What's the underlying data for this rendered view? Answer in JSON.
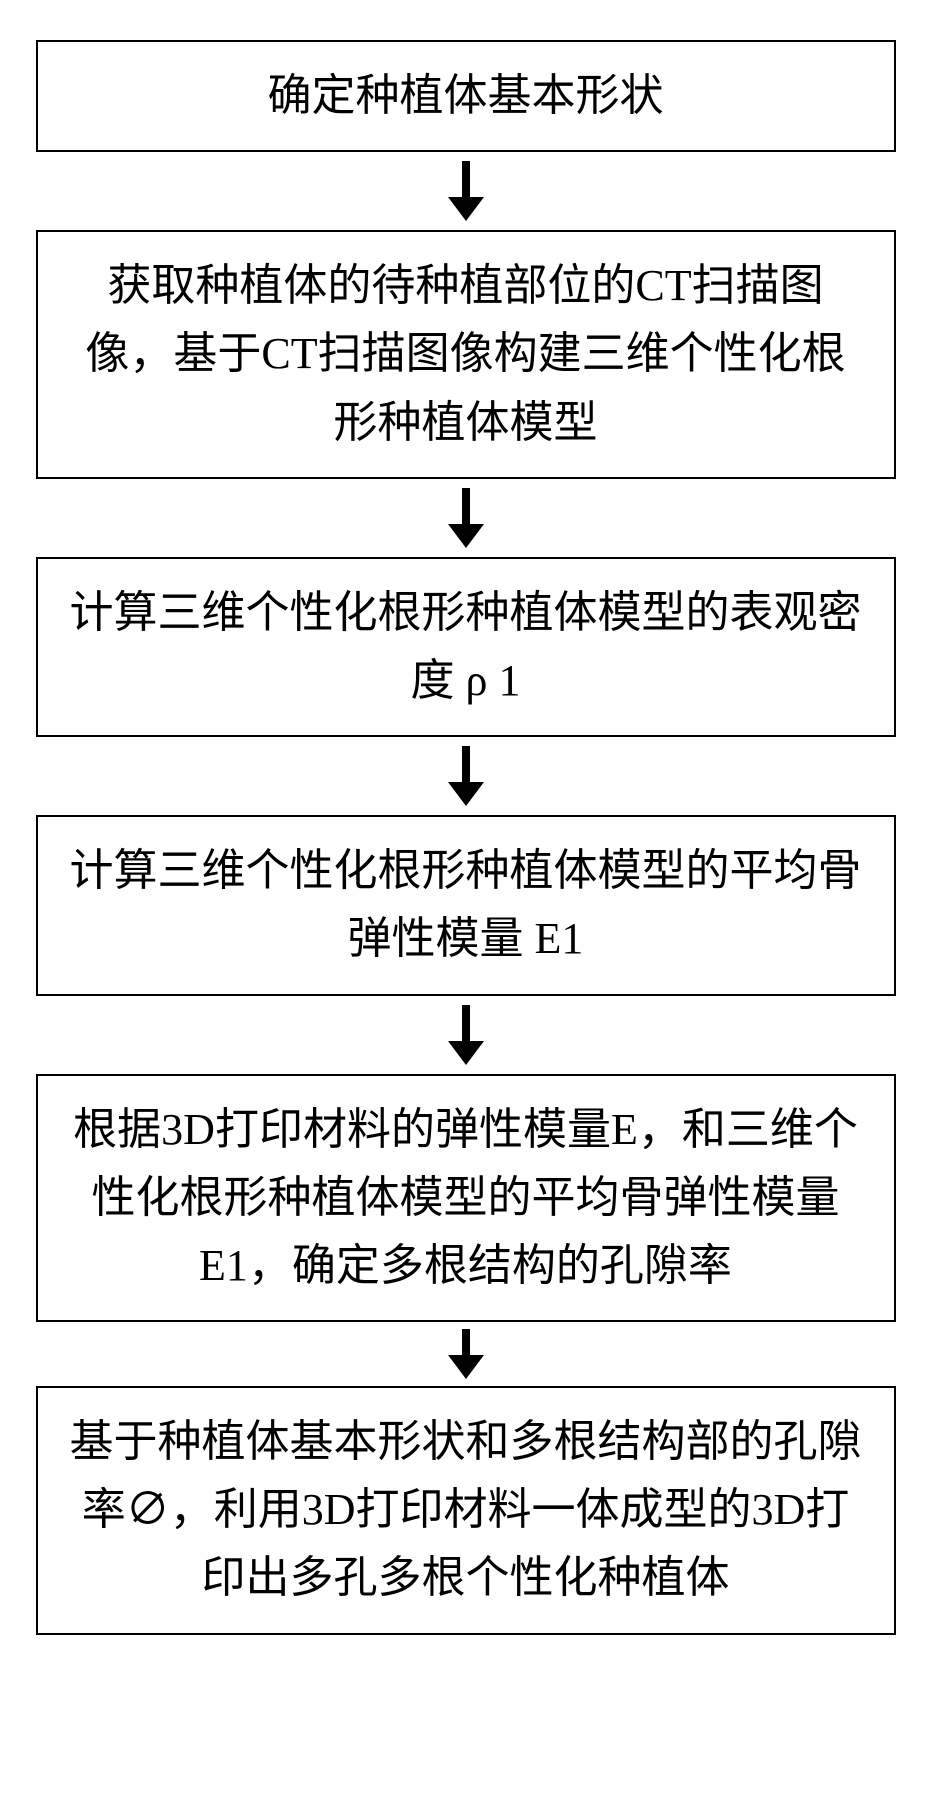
{
  "flow": {
    "type": "flowchart",
    "direction": "vertical",
    "node_border_color": "#000000",
    "node_border_width": 2,
    "node_background": "#ffffff",
    "text_color": "#000000",
    "font_size_pt": 32,
    "arrow_color": "#000000",
    "arrow_shaft_width": 8,
    "arrow_head_width": 36,
    "arrow_head_height": 24,
    "background_color": "#ffffff",
    "nodes": [
      {
        "id": "n1",
        "text": "确定种植体基本形状"
      },
      {
        "id": "n2",
        "text": "获取种植体的待种植部位的CT扫描图像，基于CT扫描图像构建三维个性化根形种植体模型"
      },
      {
        "id": "n3",
        "text": "计算三维个性化根形种植体模型的表观密度 ρ 1"
      },
      {
        "id": "n4",
        "text": "计算三维个性化根形种植体模型的平均骨弹性模量 E1"
      },
      {
        "id": "n5",
        "text": "根据3D打印材料的弹性模量E，和三维个性化根形种植体模型的平均骨弹性模量 E1，确定多根结构的孔隙率"
      },
      {
        "id": "n6",
        "text": "基于种植体基本形状和多根结构部的孔隙率∅，利用3D打印材料一体成型的3D打印出多孔多根个性化种植体"
      }
    ],
    "edges": [
      {
        "from": "n1",
        "to": "n2"
      },
      {
        "from": "n2",
        "to": "n3"
      },
      {
        "from": "n3",
        "to": "n4"
      },
      {
        "from": "n4",
        "to": "n5"
      },
      {
        "from": "n5",
        "to": "n6"
      }
    ]
  }
}
